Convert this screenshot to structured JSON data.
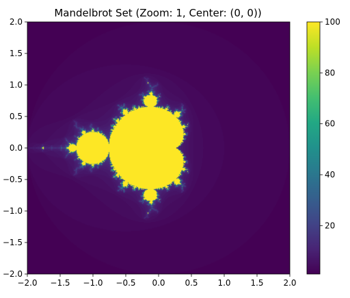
{
  "chart_data": {
    "type": "heatmap",
    "title": "Mandelbrot Set (Zoom: 1, Center: (0, 0))",
    "xlabel": "",
    "ylabel": "",
    "xlim": [
      -2.0,
      2.0
    ],
    "ylim": [
      -2.0,
      2.0
    ],
    "x_ticks": [
      -2.0,
      -1.5,
      -1.0,
      -0.5,
      0.0,
      0.5,
      1.0,
      1.5,
      2.0
    ],
    "y_ticks": [
      -2.0,
      -1.5,
      -1.0,
      -0.5,
      0.0,
      0.5,
      1.0,
      1.5,
      2.0
    ],
    "x_tick_labels": [
      "−2.0",
      "−1.5",
      "−1.0",
      "−0.5",
      "0.0",
      "0.5",
      "1.0",
      "1.5",
      "2.0"
    ],
    "y_tick_labels": [
      "−2.0",
      "−1.5",
      "−1.0",
      "−0.5",
      "0.0",
      "0.5",
      "1.0",
      "1.5",
      "2.0"
    ],
    "colormap": "viridis",
    "max_iterations": 100,
    "zoom": 1,
    "center": [
      0,
      0
    ],
    "colorbar": {
      "range": [
        1,
        100
      ],
      "ticks": [
        20,
        40,
        60,
        80,
        100
      ],
      "tick_labels": [
        "20",
        "40",
        "60",
        "80",
        "100"
      ]
    },
    "grid": false
  }
}
